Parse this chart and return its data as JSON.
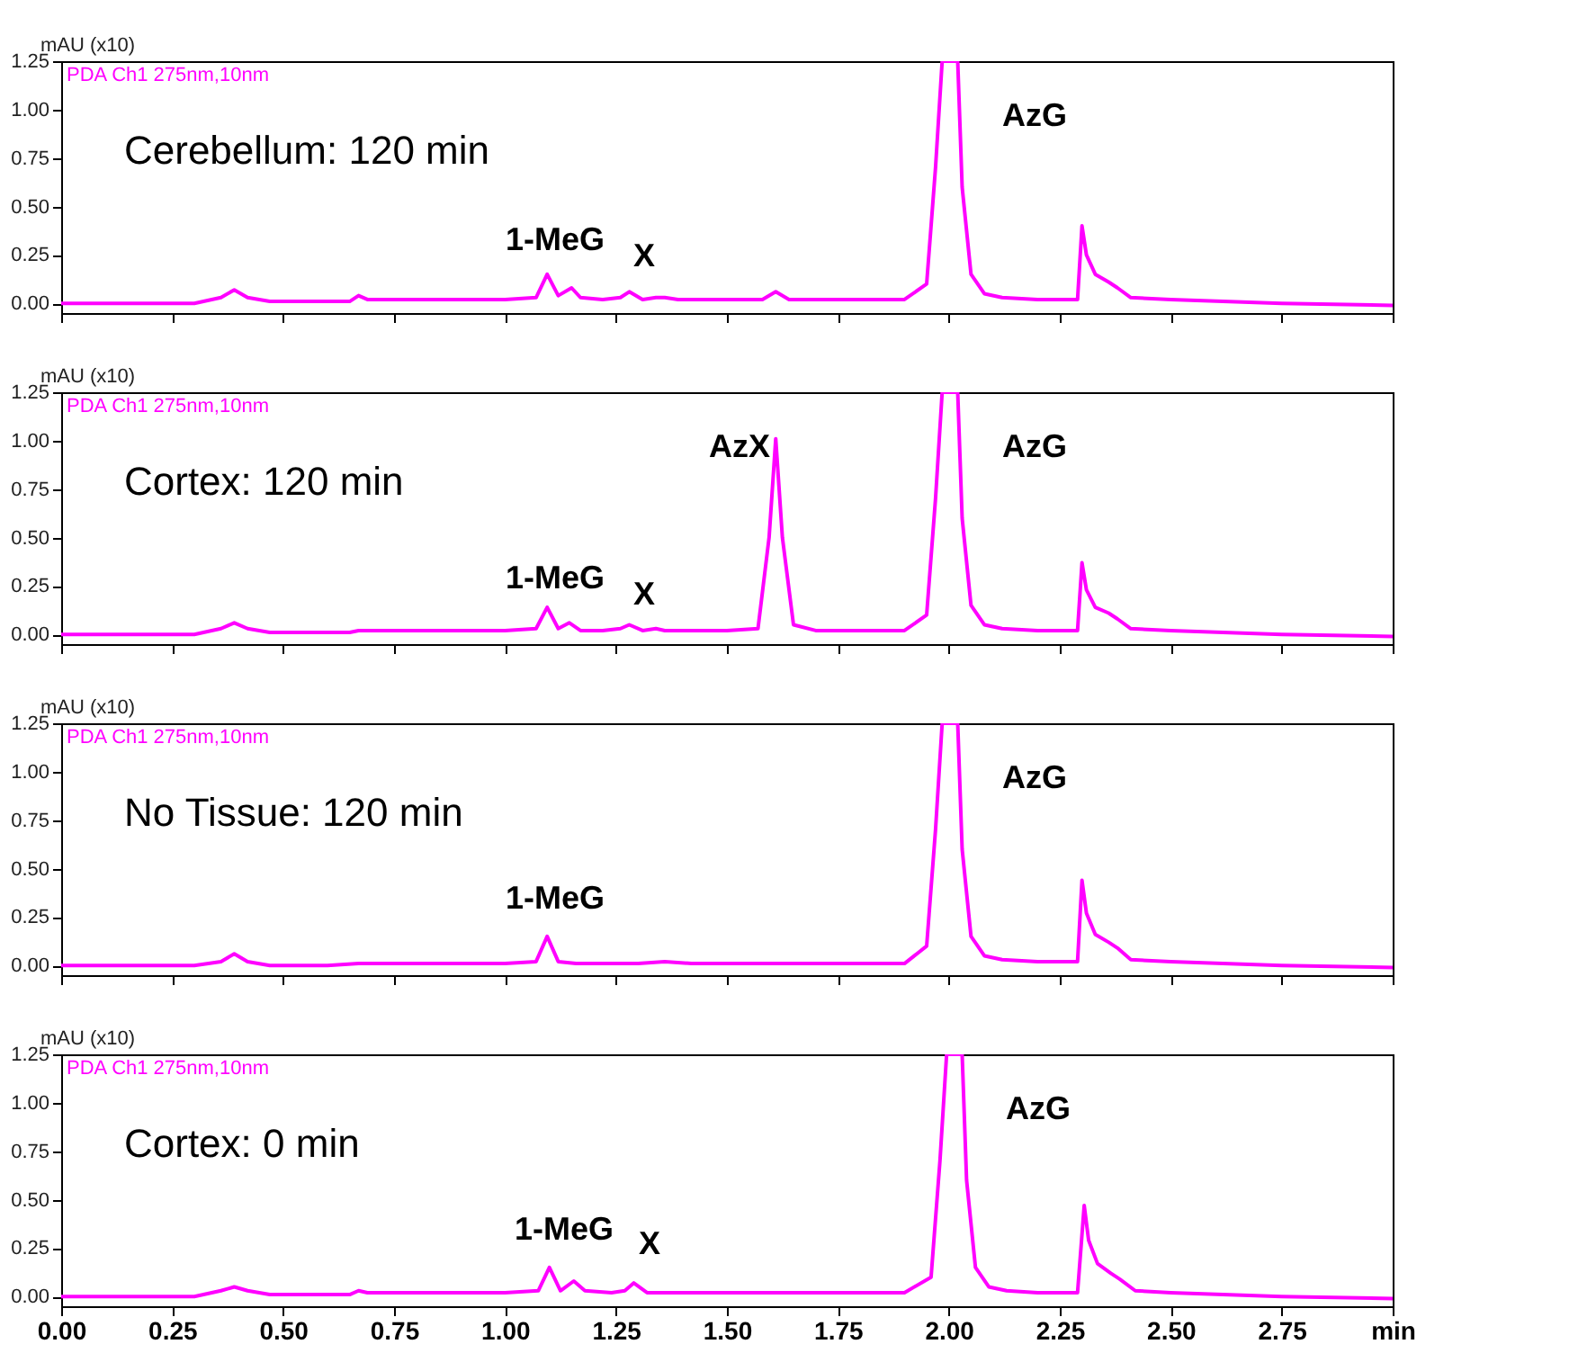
{
  "chart_data": [
    {
      "type": "line",
      "tick_labels": "y",
      "grid": false,
      "ylabel": "mAU (x10)",
      "x": [
        0,
        0.3,
        0.36,
        0.39,
        0.42,
        0.47,
        0.6,
        0.65,
        0.67,
        0.69,
        0.75,
        1.0,
        1.07,
        1.095,
        1.12,
        1.15,
        1.17,
        1.22,
        1.26,
        1.28,
        1.31,
        1.34,
        1.36,
        1.39,
        1.5,
        1.58,
        1.61,
        1.64,
        1.68,
        1.71,
        1.74,
        1.9,
        1.95,
        1.97,
        1.985,
        2.02,
        2.03,
        2.05,
        2.08,
        2.12,
        2.2,
        2.29,
        2.3,
        2.31,
        2.33,
        2.36,
        2.38,
        2.41,
        2.5,
        2.75,
        3.0
      ],
      "series": [
        {
          "color": "#ff00ff",
          "values": [
            0.0,
            0.0,
            0.03,
            0.07,
            0.03,
            0.01,
            0.01,
            0.01,
            0.04,
            0.02,
            0.02,
            0.02,
            0.03,
            0.15,
            0.04,
            0.08,
            0.03,
            0.02,
            0.03,
            0.06,
            0.02,
            0.03,
            0.03,
            0.02,
            0.02,
            0.02,
            0.06,
            0.02,
            0.02,
            0.02,
            0.02,
            0.02,
            0.1,
            0.7,
            1.25,
            1.25,
            0.6,
            0.15,
            0.05,
            0.03,
            0.02,
            0.02,
            0.4,
            0.25,
            0.15,
            0.11,
            0.08,
            0.03,
            0.02,
            0.0,
            -0.01
          ]
        }
      ],
      "xlim": [
        0,
        3.0
      ],
      "xticks": [
        {
          "value": 0,
          "label": null
        },
        {
          "value": 0.25,
          "label": null
        },
        {
          "value": 0.5,
          "label": null
        },
        {
          "value": 0.75,
          "label": null
        },
        {
          "value": 1,
          "label": null
        },
        {
          "value": 1.25,
          "label": null
        },
        {
          "value": 1.5,
          "label": null
        },
        {
          "value": 1.75,
          "label": null
        },
        {
          "value": 2,
          "label": null
        },
        {
          "value": 2.25,
          "label": null
        },
        {
          "value": 2.5,
          "label": null
        },
        {
          "value": 2.75,
          "label": null
        },
        {
          "value": 3.0,
          "label": null
        }
      ],
      "ylim": [
        -0.05,
        1.25
      ],
      "yticks": [
        {
          "value": 0,
          "label": "0.00"
        },
        {
          "value": 0.25,
          "label": "0.25"
        },
        {
          "value": 0.5,
          "label": "0.50"
        },
        {
          "value": 0.75,
          "label": "0.75"
        },
        {
          "value": 1,
          "label": "1.00"
        },
        {
          "value": 1.25,
          "label": "1.25"
        }
      ],
      "annotations": [
        "PDA Ch1 275nm,10nm",
        "Cerebellum: 120 min",
        "1-MeG",
        "X",
        "AzG"
      ]
    },
    {
      "type": "line",
      "tick_labels": "y",
      "grid": false,
      "ylabel": "mAU (x10)",
      "x": [
        0,
        0.3,
        0.36,
        0.39,
        0.42,
        0.47,
        0.6,
        0.65,
        0.67,
        0.69,
        0.75,
        1.0,
        1.07,
        1.095,
        1.12,
        1.145,
        1.17,
        1.22,
        1.26,
        1.28,
        1.31,
        1.34,
        1.36,
        1.39,
        1.5,
        1.57,
        1.595,
        1.61,
        1.625,
        1.65,
        1.7,
        1.9,
        1.95,
        1.97,
        1.985,
        2.02,
        2.03,
        2.05,
        2.08,
        2.12,
        2.2,
        2.29,
        2.3,
        2.31,
        2.33,
        2.36,
        2.38,
        2.41,
        2.5,
        2.75,
        3.0
      ],
      "series": [
        {
          "color": "#ff00ff",
          "values": [
            0.0,
            0.0,
            0.03,
            0.06,
            0.03,
            0.01,
            0.01,
            0.01,
            0.02,
            0.02,
            0.02,
            0.02,
            0.03,
            0.14,
            0.03,
            0.06,
            0.02,
            0.02,
            0.03,
            0.05,
            0.02,
            0.03,
            0.02,
            0.02,
            0.02,
            0.03,
            0.5,
            1.01,
            0.5,
            0.05,
            0.02,
            0.02,
            0.1,
            0.7,
            1.25,
            1.25,
            0.6,
            0.15,
            0.05,
            0.03,
            0.02,
            0.02,
            0.37,
            0.23,
            0.14,
            0.11,
            0.08,
            0.03,
            0.02,
            0.0,
            -0.01
          ]
        }
      ],
      "xlim": [
        0,
        3.0
      ],
      "xticks": [
        {
          "value": 0,
          "label": null
        },
        {
          "value": 0.25,
          "label": null
        },
        {
          "value": 0.5,
          "label": null
        },
        {
          "value": 0.75,
          "label": null
        },
        {
          "value": 1,
          "label": null
        },
        {
          "value": 1.25,
          "label": null
        },
        {
          "value": 1.5,
          "label": null
        },
        {
          "value": 1.75,
          "label": null
        },
        {
          "value": 2,
          "label": null
        },
        {
          "value": 2.25,
          "label": null
        },
        {
          "value": 2.5,
          "label": null
        },
        {
          "value": 2.75,
          "label": null
        },
        {
          "value": 3.0,
          "label": null
        }
      ],
      "ylim": [
        -0.05,
        1.25
      ],
      "yticks": [
        {
          "value": 0,
          "label": "0.00"
        },
        {
          "value": 0.25,
          "label": "0.25"
        },
        {
          "value": 0.5,
          "label": "0.50"
        },
        {
          "value": 0.75,
          "label": "0.75"
        },
        {
          "value": 1,
          "label": "1.00"
        },
        {
          "value": 1.25,
          "label": "1.25"
        }
      ],
      "annotations": [
        "PDA Ch1 275nm,10nm",
        "Cortex: 120 min",
        "1-MeG",
        "X",
        "AzX",
        "AzG"
      ]
    },
    {
      "type": "line",
      "tick_labels": "y",
      "grid": false,
      "ylabel": "mAU (x10)",
      "x": [
        0,
        0.3,
        0.36,
        0.39,
        0.42,
        0.47,
        0.6,
        0.67,
        0.75,
        1.0,
        1.07,
        1.095,
        1.12,
        1.16,
        1.3,
        1.36,
        1.42,
        1.6,
        1.9,
        1.95,
        1.97,
        1.985,
        2.02,
        2.03,
        2.05,
        2.08,
        2.12,
        2.2,
        2.29,
        2.3,
        2.31,
        2.33,
        2.36,
        2.38,
        2.41,
        2.5,
        2.75,
        3.0
      ],
      "series": [
        {
          "color": "#ff00ff",
          "values": [
            0.0,
            0.0,
            0.02,
            0.06,
            0.02,
            0.0,
            0.0,
            0.01,
            0.01,
            0.01,
            0.02,
            0.15,
            0.02,
            0.01,
            0.01,
            0.02,
            0.01,
            0.01,
            0.01,
            0.1,
            0.7,
            1.25,
            1.25,
            0.6,
            0.15,
            0.05,
            0.03,
            0.02,
            0.02,
            0.44,
            0.27,
            0.16,
            0.12,
            0.09,
            0.03,
            0.02,
            0.0,
            -0.01
          ]
        }
      ],
      "xlim": [
        0,
        3.0
      ],
      "xticks": [
        {
          "value": 0,
          "label": null
        },
        {
          "value": 0.25,
          "label": null
        },
        {
          "value": 0.5,
          "label": null
        },
        {
          "value": 0.75,
          "label": null
        },
        {
          "value": 1,
          "label": null
        },
        {
          "value": 1.25,
          "label": null
        },
        {
          "value": 1.5,
          "label": null
        },
        {
          "value": 1.75,
          "label": null
        },
        {
          "value": 2,
          "label": null
        },
        {
          "value": 2.25,
          "label": null
        },
        {
          "value": 2.5,
          "label": null
        },
        {
          "value": 2.75,
          "label": null
        },
        {
          "value": 3.0,
          "label": null
        }
      ],
      "ylim": [
        -0.05,
        1.25
      ],
      "yticks": [
        {
          "value": 0,
          "label": "0.00"
        },
        {
          "value": 0.25,
          "label": "0.25"
        },
        {
          "value": 0.5,
          "label": "0.50"
        },
        {
          "value": 0.75,
          "label": "0.75"
        },
        {
          "value": 1,
          "label": "1.00"
        },
        {
          "value": 1.25,
          "label": "1.25"
        }
      ],
      "annotations": [
        "PDA Ch1 275nm,10nm",
        "No Tissue: 120 min",
        "1-MeG",
        "AzG"
      ]
    },
    {
      "type": "line",
      "grid": false,
      "ylabel": "mAU (x10)",
      "x": [
        0,
        0.3,
        0.36,
        0.39,
        0.42,
        0.47,
        0.6,
        0.65,
        0.67,
        0.69,
        0.75,
        1.0,
        1.075,
        1.1,
        1.125,
        1.155,
        1.18,
        1.24,
        1.27,
        1.29,
        1.32,
        1.4,
        1.5,
        1.6,
        1.72,
        1.9,
        1.96,
        1.98,
        1.995,
        2.03,
        2.04,
        2.06,
        2.09,
        2.13,
        2.2,
        2.29,
        2.305,
        2.315,
        2.335,
        2.365,
        2.385,
        2.42,
        2.5,
        2.75,
        3.0
      ],
      "series": [
        {
          "color": "#ff00ff",
          "values": [
            0.0,
            0.0,
            0.03,
            0.05,
            0.03,
            0.01,
            0.01,
            0.01,
            0.03,
            0.02,
            0.02,
            0.02,
            0.03,
            0.15,
            0.03,
            0.08,
            0.03,
            0.02,
            0.03,
            0.07,
            0.02,
            0.02,
            0.02,
            0.02,
            0.02,
            0.02,
            0.1,
            0.7,
            1.25,
            1.25,
            0.6,
            0.15,
            0.05,
            0.03,
            0.02,
            0.02,
            0.47,
            0.29,
            0.17,
            0.12,
            0.09,
            0.03,
            0.02,
            0.0,
            -0.01
          ]
        }
      ],
      "xlim": [
        0,
        3.0
      ],
      "xticks": [
        {
          "value": 0,
          "label": "0.00"
        },
        {
          "value": 0.25,
          "label": "0.25"
        },
        {
          "value": 0.5,
          "label": "0.50"
        },
        {
          "value": 0.75,
          "label": "0.75"
        },
        {
          "value": 1,
          "label": "1.00"
        },
        {
          "value": 1.25,
          "label": "1.25"
        },
        {
          "value": 1.5,
          "label": "1.50"
        },
        {
          "value": 1.75,
          "label": "1.75"
        },
        {
          "value": 2,
          "label": "2.00"
        },
        {
          "value": 2.25,
          "label": "2.25"
        },
        {
          "value": 2.5,
          "label": "2.50"
        },
        {
          "value": 2.75,
          "label": "2.75"
        },
        {
          "value": 3.0,
          "label": "min"
        }
      ],
      "ylim": [
        -0.05,
        1.25
      ],
      "yticks": [
        {
          "value": 0,
          "label": "0.00"
        },
        {
          "value": 0.25,
          "label": "0.25"
        },
        {
          "value": 0.5,
          "label": "0.50"
        },
        {
          "value": 0.75,
          "label": "0.75"
        },
        {
          "value": 1,
          "label": "1.00"
        },
        {
          "value": 1.25,
          "label": "1.25"
        }
      ],
      "annotations": [
        "PDA Ch1 275nm,10nm",
        "Cortex: 0 min",
        "1-MeG",
        "X",
        "AzG"
      ]
    }
  ]
}
